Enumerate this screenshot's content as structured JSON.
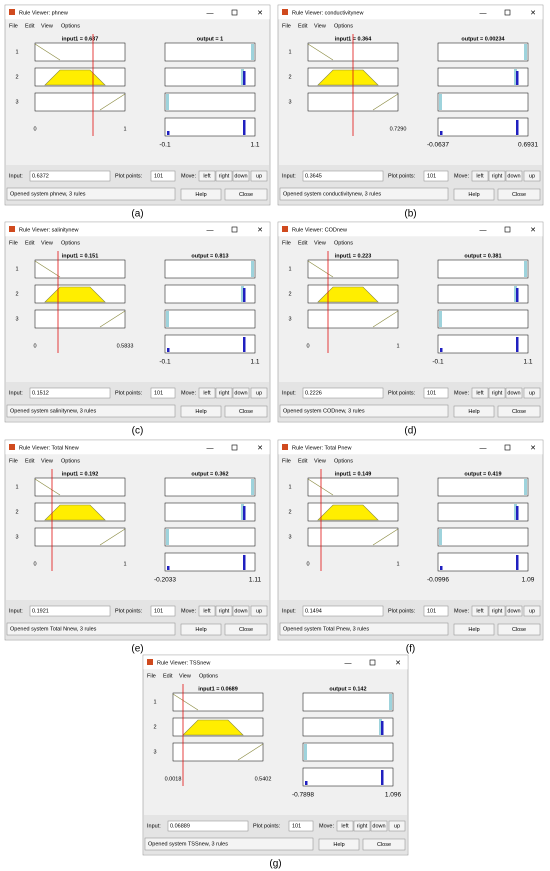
{
  "common": {
    "menu": [
      "File",
      "Edit",
      "View",
      "Options"
    ],
    "rules": [
      "1",
      "2",
      "3"
    ],
    "input_label": "Input:",
    "plot_points_label": "Plot points:",
    "move_label": "Move:",
    "move_buttons": [
      "left",
      "right",
      "down",
      "up"
    ],
    "help": "Help",
    "close": "Close"
  },
  "windows": [
    {
      "title": "Rule Viewer: phnew",
      "input_title": "input1 = 0.637",
      "output_title": "output = 1",
      "input_axis": [
        "0",
        "1"
      ],
      "output_axis": [
        "-0.1",
        "1.1"
      ],
      "input_value": "0.6372",
      "plot_points": "101",
      "status": "Opened system phnew, 3 rules",
      "caption": "(a)"
    },
    {
      "title": "Rule Viewer: conductivitynew",
      "input_title": "input1 = 0.364",
      "output_title": "output = 0.00234",
      "input_axis": [
        "0.7290"
      ],
      "output_axis": [
        "-0.0637",
        "0.6931"
      ],
      "input_value": "0.3645",
      "plot_points": "101",
      "status": "Opened system conductivitynew, 3 rules",
      "caption": "(b)"
    },
    {
      "title": "Rule Viewer: salinitynew",
      "input_title": "input1 = 0.151",
      "output_title": "output = 0.813",
      "input_axis": [
        "0",
        "0.5833"
      ],
      "output_axis": [
        "-0.1",
        "1.1"
      ],
      "input_value": "0.1512",
      "plot_points": "101",
      "status": "Opened system salinitynew, 3 rules",
      "caption": "(c)"
    },
    {
      "title": "Rule Viewer: CODnew",
      "input_title": "input1 = 0.223",
      "output_title": "output = 0.381",
      "input_axis": [
        "0",
        "1"
      ],
      "output_axis": [
        "-0.1",
        "1.1"
      ],
      "input_value": "0.2226",
      "plot_points": "101",
      "status": "Opened system CODnew, 3 rules",
      "caption": "(d)"
    },
    {
      "title": "Rule Viewer: Total Nnew",
      "input_title": "input1 = 0.192",
      "output_title": "output = 0.362",
      "input_axis": [
        "0",
        "1"
      ],
      "output_axis": [
        "-0.2033",
        "1.11"
      ],
      "input_value": "0.1921",
      "plot_points": "101",
      "status": "Opened system Total Nnew, 3 rules",
      "caption": "(e)"
    },
    {
      "title": "Rule Viewer: Total Pnew",
      "input_title": "input1 = 0.149",
      "output_title": "output = 0.419",
      "input_axis": [
        "0",
        "1"
      ],
      "output_axis": [
        "-0.0996",
        "1.09"
      ],
      "input_value": "0.1494",
      "plot_points": "101",
      "status": "Opened system Total Pnew, 3 rules",
      "caption": "(f)"
    },
    {
      "title": "Rule Viewer: TSSnew",
      "input_title": "input1 = 0.0689",
      "output_title": "output = 0.142",
      "input_axis": [
        "0.0018",
        "0.5402"
      ],
      "output_axis": [
        "-0.7898",
        "1.096"
      ],
      "input_value": "0.06889",
      "plot_points": "101",
      "status": "Opened system TSSnew, 3 rules",
      "caption": "(g)"
    }
  ]
}
